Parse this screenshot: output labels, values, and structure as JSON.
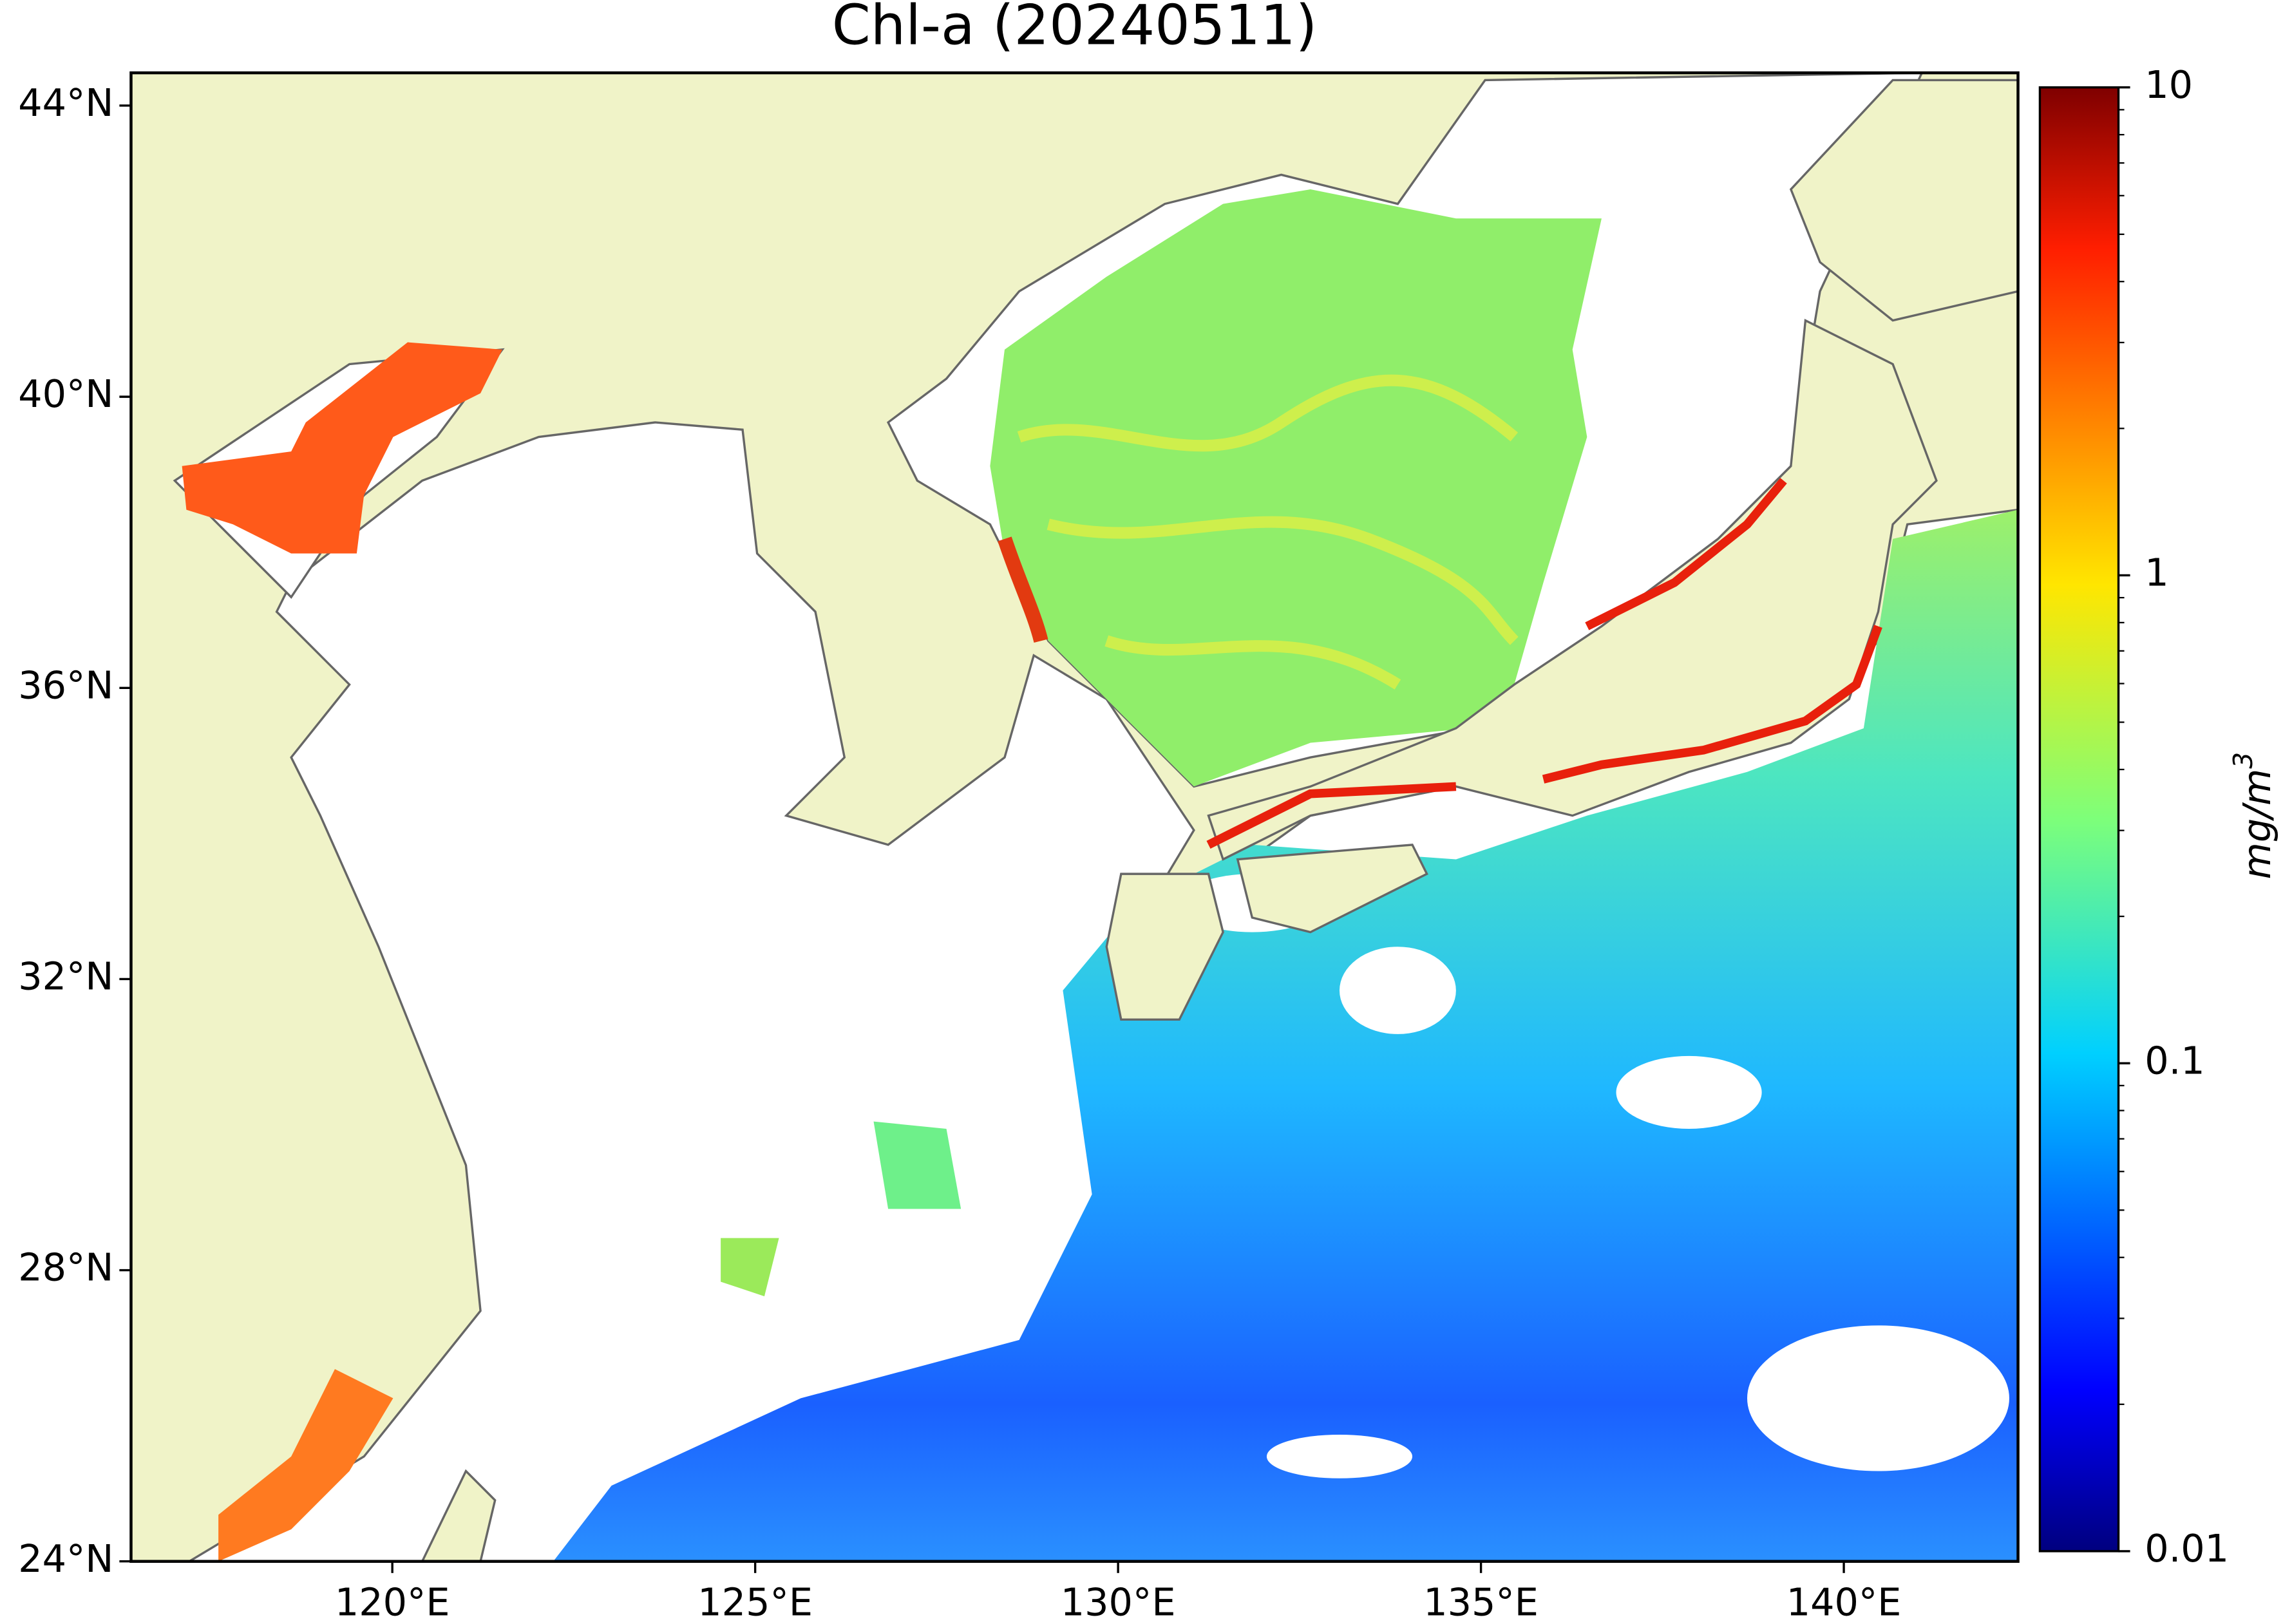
{
  "map": {
    "title": "Chl-a (20240511)",
    "lonlim": [
      116.4,
      142.4
    ],
    "latlim": [
      24,
      44.45
    ],
    "lon_ticks": [
      {
        "value": 120,
        "label": "120°E"
      },
      {
        "value": 125,
        "label": "125°E"
      },
      {
        "value": 130,
        "label": "130°E"
      },
      {
        "value": 135,
        "label": "135°E"
      },
      {
        "value": 140,
        "label": "140°E"
      }
    ],
    "lat_ticks": [
      {
        "value": 24,
        "label": "24°N"
      },
      {
        "value": 28,
        "label": "28°N"
      },
      {
        "value": 32,
        "label": "32°N"
      },
      {
        "value": 36,
        "label": "36°N"
      },
      {
        "value": 40,
        "label": "40°N"
      },
      {
        "value": 44,
        "label": "44°N"
      }
    ],
    "colorbar": {
      "label": "mg/m",
      "label_sup": "3",
      "log": true,
      "colormap": "jet",
      "lim": [
        0.01,
        10
      ],
      "ticks": [
        0.01,
        0.1,
        1,
        10
      ],
      "minor_ticks": [
        0.02,
        0.03,
        0.04,
        0.05,
        0.06,
        0.07,
        0.08,
        0.09,
        0.2,
        0.3,
        0.4,
        0.5,
        0.6,
        0.7,
        0.8,
        0.9,
        2,
        3,
        4,
        5,
        6,
        7,
        8,
        9
      ]
    }
  }
}
